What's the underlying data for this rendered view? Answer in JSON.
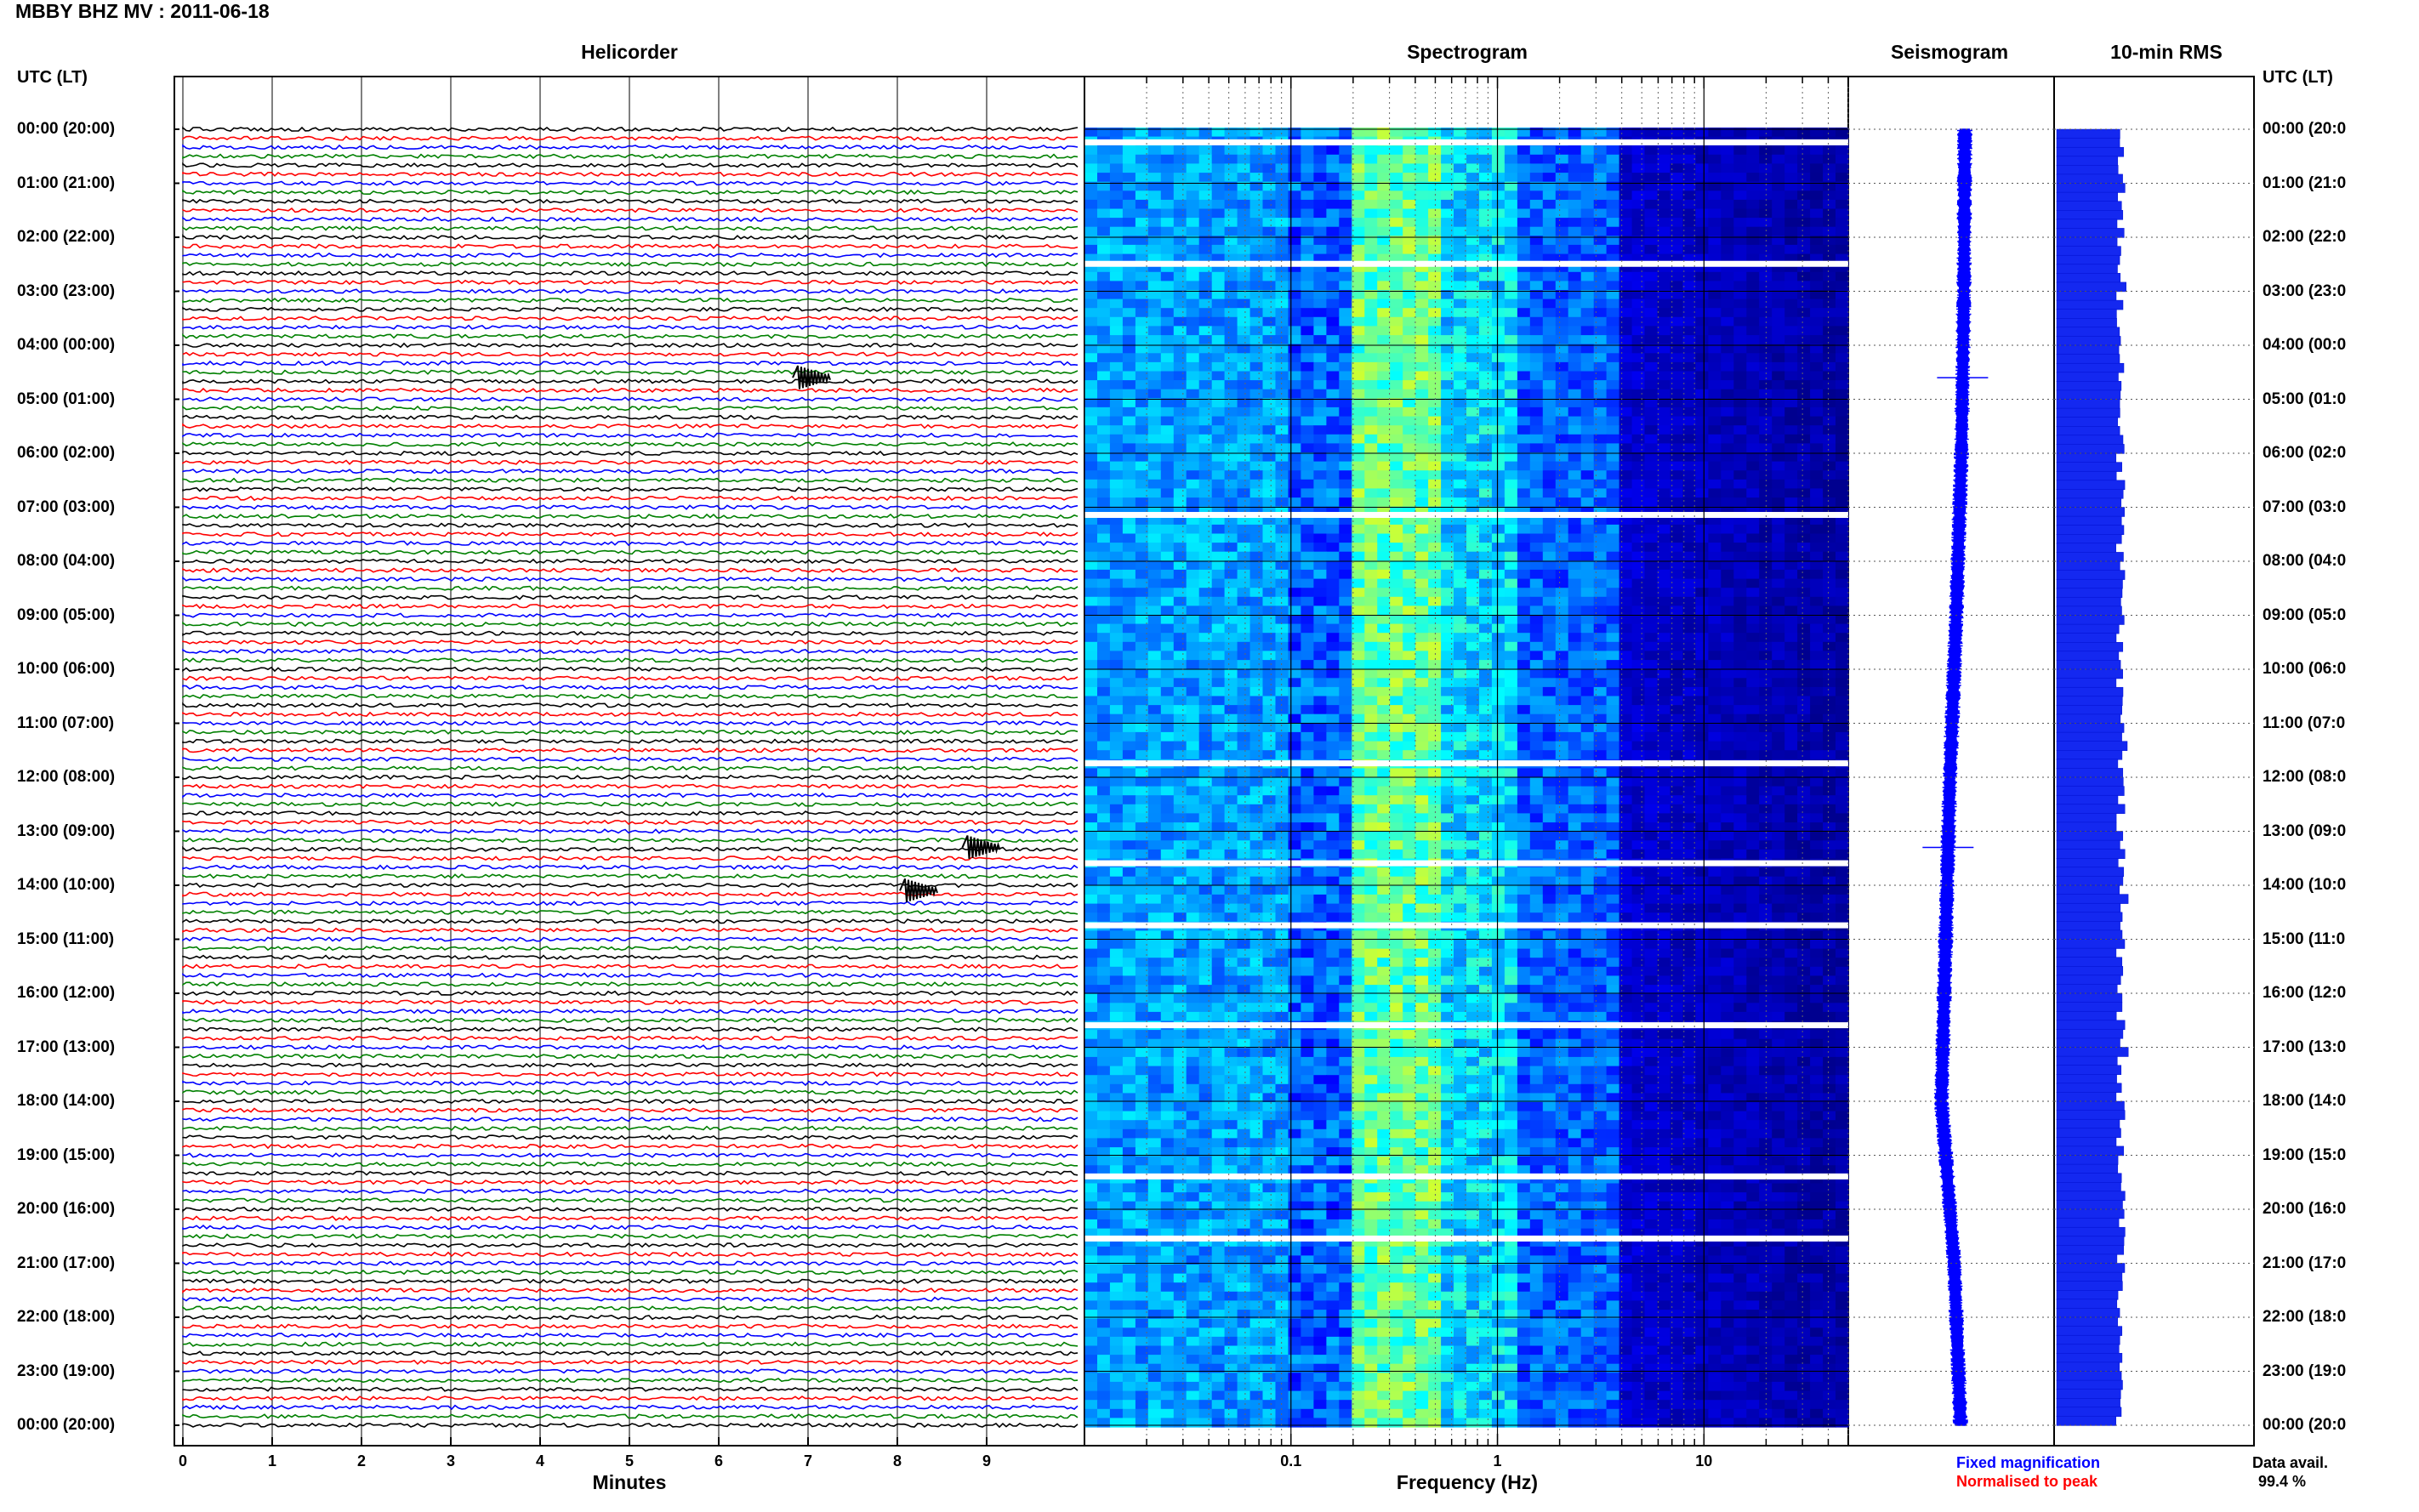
{
  "title": "MBBY BHZ MV : 2011-06-18",
  "panels": {
    "helicorder": "Helicorder",
    "spectrogram": "Spectrogram",
    "seismogram": "Seismogram",
    "rms": "10-min RMS"
  },
  "axis_header_left": "UTC (LT)",
  "axis_header_right": "UTC (LT)",
  "hour_labels": [
    "00:00 (20:00)",
    "01:00 (21:00)",
    "02:00 (22:00)",
    "03:00 (23:00)",
    "04:00 (00:00)",
    "05:00 (01:00)",
    "06:00 (02:00)",
    "07:00 (03:00)",
    "08:00 (04:00)",
    "09:00 (05:00)",
    "10:00 (06:00)",
    "11:00 (07:00)",
    "12:00 (08:00)",
    "13:00 (09:00)",
    "14:00 (10:00)",
    "15:00 (11:00)",
    "16:00 (12:00)",
    "17:00 (13:00)",
    "18:00 (14:00)",
    "19:00 (15:00)",
    "20:00 (16:00)",
    "21:00 (17:00)",
    "22:00 (18:00)",
    "23:00 (19:00)",
    "00:00 (20:00)"
  ],
  "hour_labels_right": [
    "00:00 (20:0",
    "01:00 (21:0",
    "02:00 (22:0",
    "03:00 (23:0",
    "04:00 (00:0",
    "05:00 (01:0",
    "06:00 (02:0",
    "07:00 (03:0",
    "08:00 (04:0",
    "09:00 (05:0",
    "10:00 (06:0",
    "11:00 (07:0",
    "12:00 (08:0",
    "13:00 (09:0",
    "14:00 (10:0",
    "15:00 (11:0",
    "16:00 (12:0",
    "17:00 (13:0",
    "18:00 (14:0",
    "19:00 (15:0",
    "20:00 (16:0",
    "21:00 (17:0",
    "22:00 (18:0",
    "23:00 (19:0",
    "00:00 (20:0"
  ],
  "x_labels": {
    "helicorder": "Minutes",
    "spectrogram": "Frequency (Hz)"
  },
  "legend": {
    "fixed": "Fixed magnification",
    "normalised": "Normalised to peak",
    "fixed_color": "#0000ff",
    "normalised_color": "#ff0000"
  },
  "data_avail": {
    "label": "Data avail.",
    "value": "99.4 %"
  },
  "chart_data": [
    {
      "type": "line",
      "name": "Helicorder",
      "xlabel": "Minutes",
      "x_ticks": [
        0,
        1,
        2,
        3,
        4,
        5,
        6,
        7,
        8,
        9
      ],
      "xlim": [
        0,
        10
      ],
      "rows_per_hour": 6,
      "hours": 24,
      "trace_colors": [
        "#000000",
        "#ff0000",
        "#0000ff",
        "#008000"
      ],
      "events": [
        {
          "hour": 4.6,
          "minute": 7.0
        },
        {
          "hour": 13.3,
          "minute": 8.9
        },
        {
          "hour": 14.1,
          "minute": 8.2
        }
      ]
    },
    {
      "type": "heatmap",
      "name": "Spectrogram",
      "xlabel": "Frequency (Hz)",
      "x_scale": "log",
      "x_ticks": [
        0.1,
        1,
        10
      ],
      "xlim": [
        0.01,
        50
      ],
      "colormap": [
        "#00008f",
        "#0000ff",
        "#0080ff",
        "#00ffff",
        "#80ff80",
        "#ffff00"
      ],
      "gaps_hours": [
        0.25,
        2.5,
        7.15,
        11.75,
        13.6,
        14.75,
        16.6,
        19.4,
        20.55
      ]
    },
    {
      "type": "line",
      "name": "Seismogram",
      "trend_points_hours": [
        0,
        3,
        6,
        9,
        12,
        15,
        18,
        21,
        24
      ],
      "trend_offset": [
        0.2,
        0.18,
        0.12,
        0.0,
        -0.15,
        -0.25,
        -0.35,
        -0.05,
        0.1
      ]
    },
    {
      "type": "bar",
      "name": "10-min RMS",
      "bins": 144,
      "relative_level_range": [
        0.82,
        1.0
      ]
    }
  ]
}
